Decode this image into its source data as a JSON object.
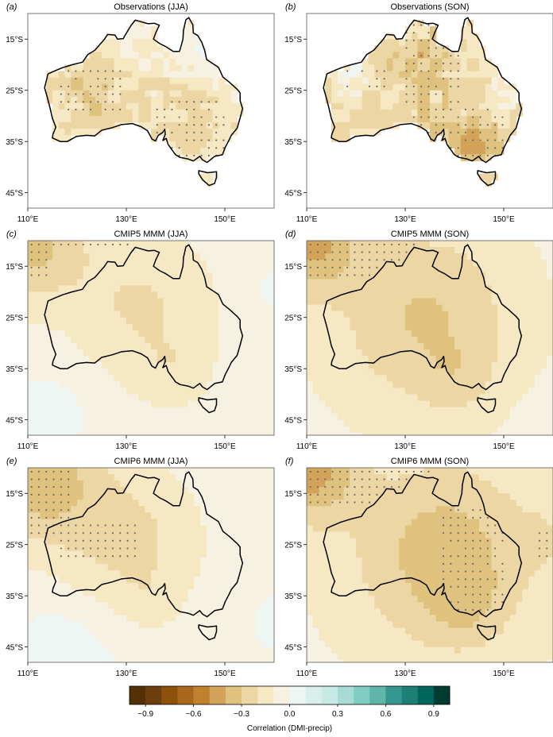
{
  "panels": [
    {
      "letter": "(a)",
      "title": "Observations (JJA)",
      "pattern": "obs-jja"
    },
    {
      "letter": "(b)",
      "title": "Observations (SON)",
      "pattern": "obs-son"
    },
    {
      "letter": "(c)",
      "title": "CMIP5 MMM (JJA)",
      "pattern": "c5-jja"
    },
    {
      "letter": "(d)",
      "title": "CMIP5 MMM (SON)",
      "pattern": "c5-son"
    },
    {
      "letter": "(e)",
      "title": "CMIP6 MMM (JJA)",
      "pattern": "c6-jja"
    },
    {
      "letter": "(f)",
      "title": "CMIP6 MMM (SON)",
      "pattern": "c6-son"
    }
  ],
  "map": {
    "lon_range": [
      110,
      160
    ],
    "lat_range": [
      -48,
      -10
    ],
    "lon_ticks": [
      {
        "value": 110,
        "label": "110°E"
      },
      {
        "value": 130,
        "label": "130°E"
      },
      {
        "value": 150,
        "label": "150°E"
      }
    ],
    "lat_ticks": [
      {
        "value": -15,
        "label": "15°S"
      },
      {
        "value": -25,
        "label": "25°S"
      },
      {
        "value": -35,
        "label": "35°S"
      },
      {
        "value": -45,
        "label": "45°S"
      }
    ]
  },
  "colorbar": {
    "title": "Correlation (DMI-precip)",
    "range": [
      -1.0,
      1.0
    ],
    "tick_values": [
      -0.9,
      -0.6,
      -0.3,
      0.0,
      0.3,
      0.6,
      0.9
    ],
    "tick_labels": [
      "−0.9",
      "−0.6",
      "−0.3",
      "0.0",
      "0.3",
      "0.6",
      "0.9"
    ],
    "colors": [
      "#543005",
      "#6e3f0e",
      "#8c510a",
      "#a9671c",
      "#bf812d",
      "#d3a35a",
      "#dfc27d",
      "#ecd6a4",
      "#f6e8c3",
      "#f7f1e2",
      "#eef6f4",
      "#d9efeb",
      "#c7eae5",
      "#a6dcd3",
      "#80cdc1",
      "#5fb5aa",
      "#35978f",
      "#1d7f76",
      "#01665e",
      "#003c30"
    ]
  }
}
